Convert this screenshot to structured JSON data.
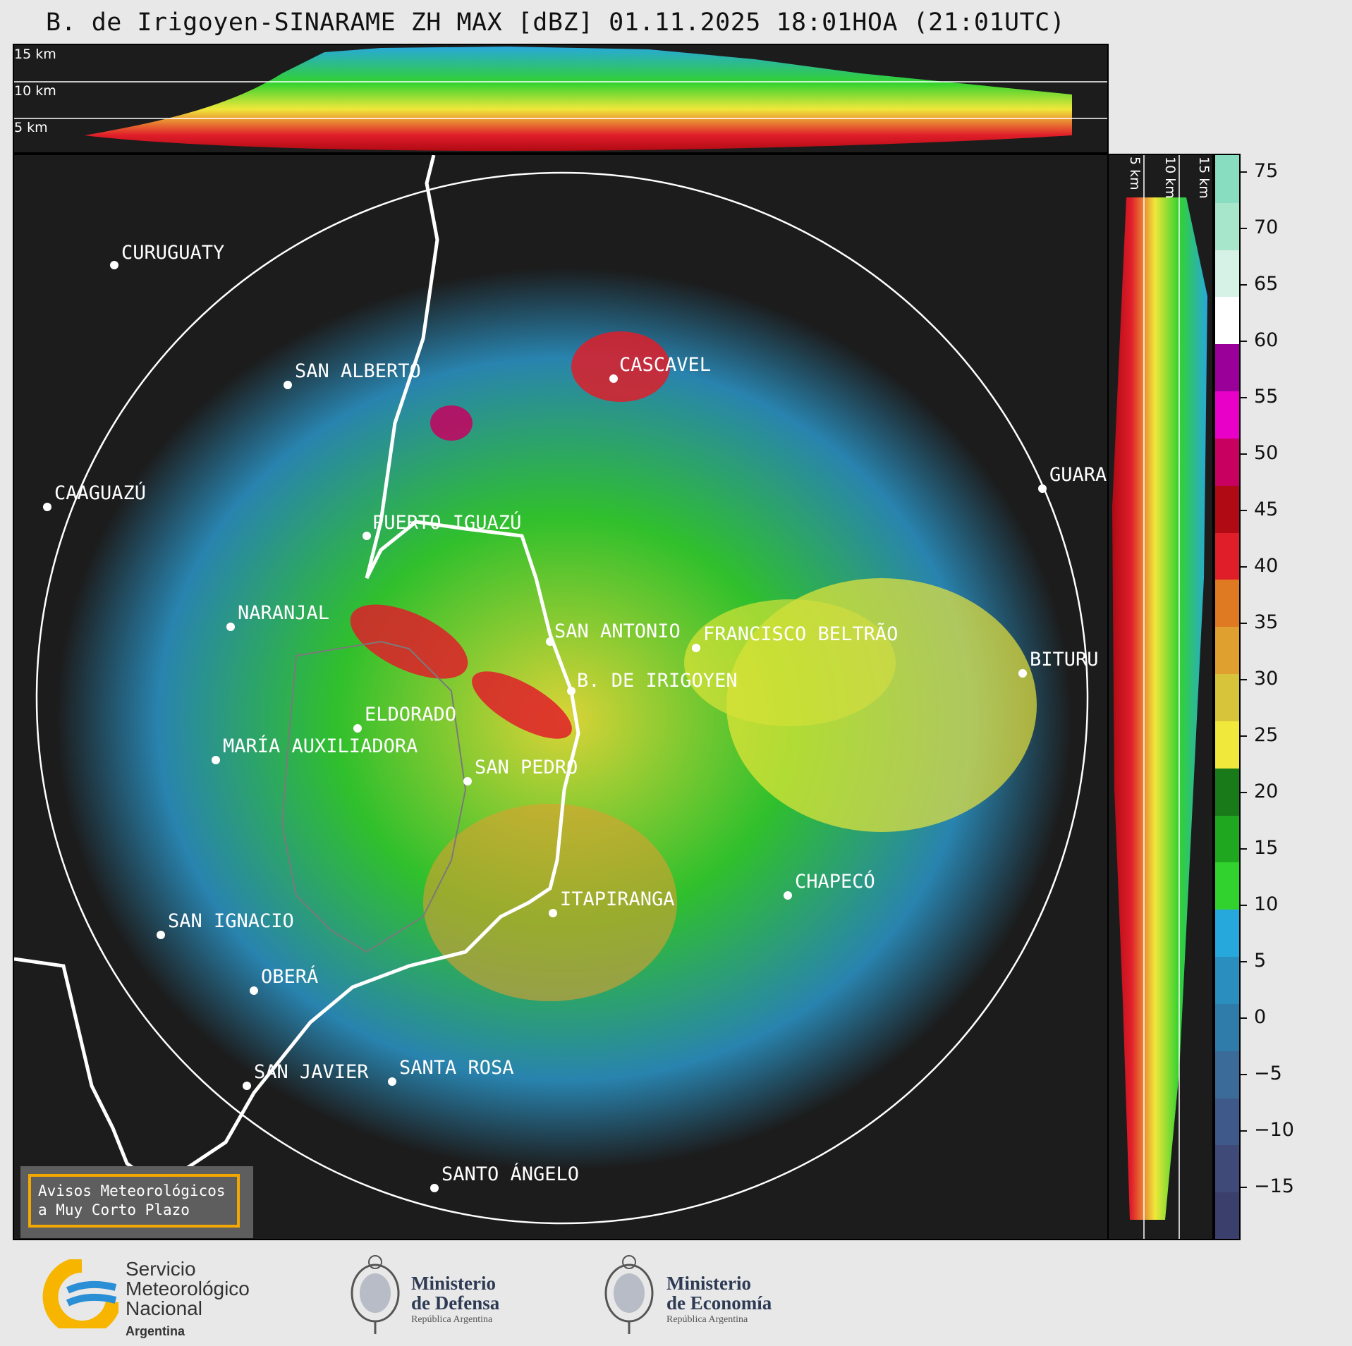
{
  "title": "B. de Irigoyen-SINARAME ZH MAX [dBZ] 01.11.2025 18:01HOA (21:01UTC)",
  "top_panel": {
    "altitude_labels": [
      "15 km",
      "10 km",
      "5 km"
    ]
  },
  "side_panel": {
    "altitude_labels": [
      "5 km",
      "10 km",
      "15 km"
    ]
  },
  "cities": [
    {
      "name": "CURUGUATY",
      "id": "curuguaty"
    },
    {
      "name": "SAN ALBERTO",
      "id": "san-alberto"
    },
    {
      "name": "CASCAVEL",
      "id": "cascavel"
    },
    {
      "name": "CAAGUAZÚ",
      "id": "caaguazu"
    },
    {
      "name": "GUARA",
      "id": "guara"
    },
    {
      "name": "PUERTO IGUAZÚ",
      "id": "puerto-iguazu"
    },
    {
      "name": "NARANJAL",
      "id": "naranjal"
    },
    {
      "name": "SAN ANTONIO",
      "id": "san-antonio"
    },
    {
      "name": "FRANCISCO BELTRÃO",
      "id": "francisco-beltrao"
    },
    {
      "name": "BITURU",
      "id": "bituru"
    },
    {
      "name": "B. DE IRIGOYEN",
      "id": "b-de-irigoyen"
    },
    {
      "name": "ELDORADO",
      "id": "eldorado"
    },
    {
      "name": "MARÍA AUXILIADORA",
      "id": "maria-auxiliadora"
    },
    {
      "name": "SAN PEDRO",
      "id": "san-pedro"
    },
    {
      "name": "CHAPECÓ",
      "id": "chapeco"
    },
    {
      "name": "ITAPIRANGA",
      "id": "itapiranga"
    },
    {
      "name": "SAN IGNACIO",
      "id": "san-ignacio"
    },
    {
      "name": "OBERÁ",
      "id": "obera"
    },
    {
      "name": "SAN JAVIER",
      "id": "san-javier"
    },
    {
      "name": "SANTA ROSA",
      "id": "santa-rosa"
    },
    {
      "name": "SANTO ÁNGELO",
      "id": "santo-angelo"
    }
  ],
  "colorbar": {
    "unit": "dBZ",
    "ticks": [
      "75",
      "70",
      "65",
      "60",
      "55",
      "50",
      "45",
      "40",
      "35",
      "30",
      "25",
      "20",
      "15",
      "10",
      "5",
      "0",
      "−5",
      "−10",
      "−15"
    ],
    "colors": [
      "#3b3f6b",
      "#404a78",
      "#3f5a8a",
      "#3b6b98",
      "#2f7cab",
      "#2a8fbf",
      "#27a8dc",
      "#32d22e",
      "#1fa81f",
      "#187a18",
      "#f0e83a",
      "#d8c43a",
      "#e0a030",
      "#e07a22",
      "#e01e2a",
      "#b00a14",
      "#c80060",
      "#e800c8",
      "#9a0099",
      "#ffffff",
      "#d6f2e6",
      "#a8e6cc",
      "#88dcc0"
    ]
  },
  "aviso": {
    "line1": "Avisos Meteorológicos",
    "line2": "a Muy Corto Plazo"
  },
  "logos": {
    "smn": {
      "line1": "Servicio",
      "line2": "Meteorológico",
      "line3": "Nacional",
      "sub": "Argentina"
    },
    "defensa": {
      "line1": "Ministerio",
      "line2": "de Defensa",
      "sub": "República Argentina"
    },
    "economia": {
      "line1": "Ministerio",
      "line2": "de Economía",
      "sub": "República Argentina"
    }
  }
}
